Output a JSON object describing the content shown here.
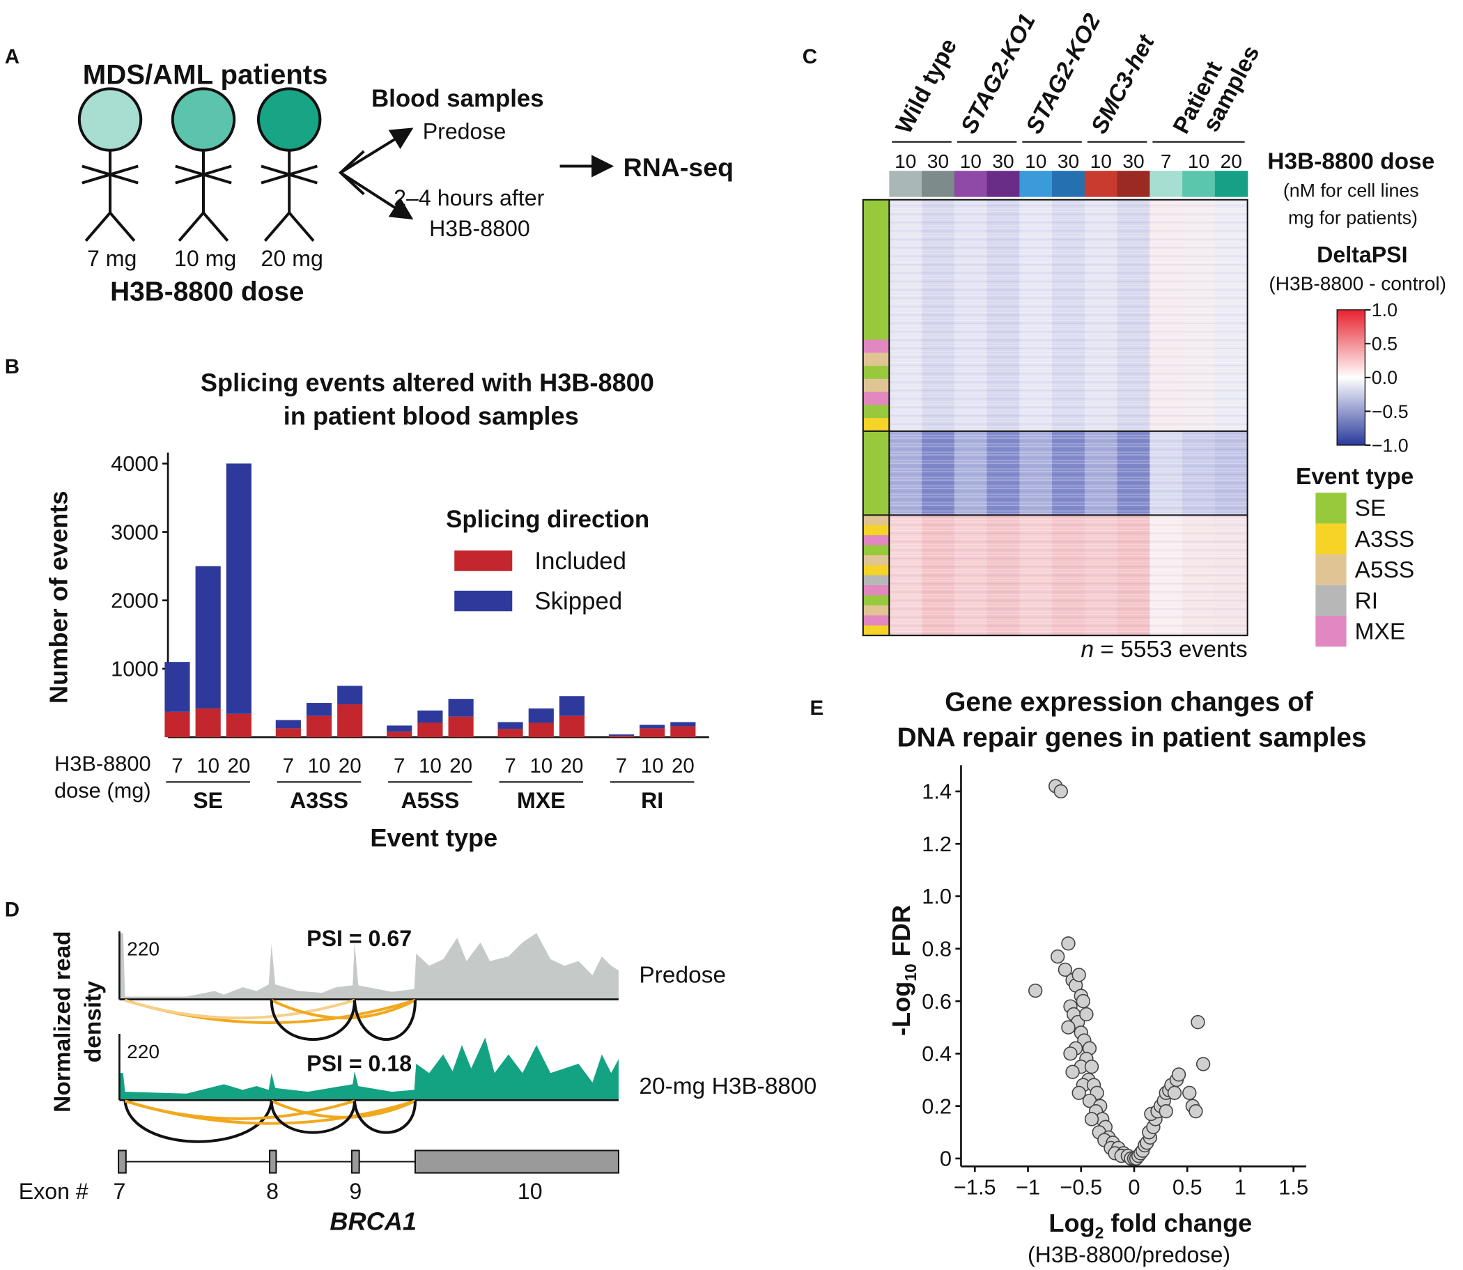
{
  "panel_labels": [
    "A",
    "B",
    "C",
    "D",
    "E"
  ],
  "panel_a": {
    "title": "MDS/AML patients",
    "doses": [
      "7 mg",
      "10 mg",
      "20 mg"
    ],
    "dose_title": "H3B-8800 dose",
    "samples_title": "Blood samples",
    "predose": "Predose",
    "after_lines": [
      "2–4 hours after",
      "H3B-8800"
    ],
    "output": "RNA-seq"
  },
  "chart_data": [
    {
      "type": "bar",
      "stacked": true,
      "title": [
        "Splicing events altered with H3B-8800",
        "in patient blood samples"
      ],
      "categories": [
        "7",
        "10",
        "20",
        "7",
        "10",
        "20",
        "7",
        "10",
        "20",
        "7",
        "10",
        "20",
        "7",
        "10",
        "20"
      ],
      "groups": [
        "SE",
        "A3SS",
        "A5SS",
        "MXE",
        "RI"
      ],
      "category_title": [
        "H3B-8800",
        "dose (mg)"
      ],
      "xlabel": "Event type",
      "ylabel": "Number of events",
      "legend_title": "Splicing direction",
      "series": [
        {
          "name": "Included",
          "color": "#c4262e",
          "values": [
            370,
            420,
            340,
            130,
            310,
            480,
            80,
            210,
            300,
            120,
            210,
            310,
            20,
            130,
            160
          ]
        },
        {
          "name": "Skipped",
          "color": "#2e3a9b",
          "values": [
            730,
            2080,
            3660,
            120,
            190,
            270,
            90,
            180,
            260,
            100,
            210,
            290,
            20,
            50,
            60
          ]
        }
      ],
      "ylim": [
        0,
        4160
      ],
      "yticks": [
        1000,
        2000,
        3000,
        4000
      ],
      "grid": false
    },
    {
      "type": "scatter",
      "title": [
        "Gene expression changes of",
        "DNA repair genes in patient samples"
      ],
      "x": [
        -0.74,
        -0.69,
        -0.93,
        -0.72,
        -0.62,
        -0.65,
        -0.58,
        -0.55,
        -0.52,
        -0.5,
        -0.48,
        -0.6,
        -0.57,
        -0.53,
        -0.62,
        -0.45,
        -0.5,
        -0.47,
        -0.55,
        -0.6,
        -0.42,
        -0.45,
        -0.5,
        -0.58,
        -0.4,
        -0.43,
        -0.48,
        -0.38,
        -0.35,
        -0.42,
        -0.52,
        -0.32,
        -0.36,
        -0.3,
        -0.4,
        -0.27,
        -0.33,
        -0.24,
        -0.28,
        -0.2,
        -0.22,
        -0.15,
        -0.18,
        -0.1,
        -0.12,
        -0.06,
        -0.03,
        0,
        0.02,
        0.04,
        0.06,
        0.08,
        0.1,
        0.12,
        0.15,
        0.14,
        0.18,
        0.2,
        0.16,
        0.22,
        0.25,
        0.28,
        0.3,
        0.33,
        0.35,
        0.38,
        0.4,
        0.42,
        0.3,
        0.52,
        0.55,
        0.58,
        0.6,
        0.65
      ],
      "y": [
        1.42,
        1.4,
        0.64,
        0.77,
        0.82,
        0.72,
        0.68,
        0.66,
        0.7,
        0.62,
        0.6,
        0.58,
        0.55,
        0.52,
        0.5,
        0.55,
        0.48,
        0.45,
        0.42,
        0.4,
        0.42,
        0.38,
        0.35,
        0.33,
        0.35,
        0.3,
        0.28,
        0.28,
        0.25,
        0.22,
        0.25,
        0.2,
        0.18,
        0.15,
        0.15,
        0.12,
        0.1,
        0.08,
        0.07,
        0.06,
        0.04,
        0.04,
        0.02,
        0.02,
        0.01,
        0.01,
        0,
        0,
        0,
        0.01,
        0.02,
        0.03,
        0.05,
        0.06,
        0.08,
        0.1,
        0.12,
        0.15,
        0.17,
        0.18,
        0.2,
        0.22,
        0.25,
        0.26,
        0.28,
        0.25,
        0.3,
        0.32,
        0.18,
        0.25,
        0.2,
        0.18,
        0.52,
        0.36
      ],
      "color": "#d0d0d0",
      "xlabel": [
        "Log",
        "2",
        " fold change"
      ],
      "xlabel_note": "(H3B-8800/predose)",
      "ylabel": [
        "-Log",
        "10",
        " FDR"
      ],
      "xlim": [
        -1.63,
        1.62
      ],
      "ylim": [
        -0.03,
        1.5
      ],
      "xticks": [
        {
          "value": -1.5,
          "label": "−1.5"
        },
        {
          "value": -1,
          "label": "−1"
        },
        {
          "value": -0.5,
          "label": "−0.5"
        },
        0,
        0.5,
        1,
        1.5
      ],
      "yticks": [
        0,
        0.2,
        0.4,
        0.6,
        0.8,
        {
          "value": 1,
          "label": "1.0"
        },
        1.2,
        1.4
      ]
    }
  ],
  "panel_c": {
    "group_lines": [
      [
        "Wild type"
      ],
      [
        "STAG2-KO1"
      ],
      [
        "STAG2-KO2"
      ],
      [
        "SMC3-het"
      ],
      [
        "Patient",
        "samples"
      ]
    ],
    "italic_groups": [
      false,
      true,
      true,
      true,
      false
    ],
    "doses": [
      "10",
      "30",
      "10",
      "30",
      "10",
      "30",
      "10",
      "30",
      "7",
      "10",
      "20"
    ],
    "column_colors": [
      "#a9b8b7",
      "#7d8b8b",
      "#8f4aa8",
      "#6a2d87",
      "#3b9ad9",
      "#2570b0",
      "#c83b2e",
      "#9a2a22",
      "#a6dfd2",
      "#5cc6ad",
      "#15a185"
    ],
    "dose_title": "H3B-8800 dose",
    "dose_note": [
      "(nM for cell lines",
      "mg for patients)"
    ],
    "colorbar_title": "DeltaPSI",
    "colorbar_note": "(H3B-8800 - control)",
    "colorbar_lim": [
      -1,
      1
    ],
    "colorbar_ticks": [
      {
        "value": 1,
        "label": "1.0"
      },
      0.5,
      {
        "value": 0,
        "label": "0.0"
      },
      {
        "value": -0.5,
        "label": "−0.5"
      },
      {
        "value": -1,
        "label": "−1.0"
      }
    ],
    "event_title": "Event type",
    "event_types": [
      {
        "name": "SE",
        "color": "#97c93d"
      },
      {
        "name": "A3SS",
        "color": "#f5d327"
      },
      {
        "name": "A5SS",
        "color": "#e0c493"
      },
      {
        "name": "RI",
        "color": "#b7b7b7"
      },
      {
        "name": "MXE",
        "color": "#e088bf"
      }
    ],
    "n_label": "n",
    "n_text": " = 5553 events"
  },
  "panel_d": {
    "ylabel": [
      "Normalized read",
      "density"
    ],
    "scale": [
      220,
      220
    ],
    "tracks": [
      {
        "label": "Predose",
        "psi_label": "PSI = 0.67"
      },
      {
        "label": "20-mg H3B-8800",
        "psi_label": "PSI = 0.18"
      }
    ],
    "exon_title": "Exon #",
    "exons": [
      "7",
      "8",
      "9",
      "10"
    ],
    "gene": "BRCA1"
  }
}
